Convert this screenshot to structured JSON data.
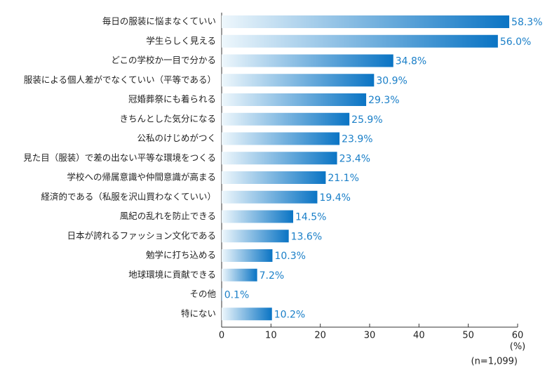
{
  "chart_data": {
    "type": "hbar",
    "categories": [
      "毎日の服装に悩まなくていい",
      "学生らしく見える",
      "どこの学校か一目で分かる",
      "服装による個人差がでなくていい（平等である）",
      "冠婚葬祭にも着られる",
      "きちんとした気分になる",
      "公私のけじめがつく",
      "見た目（服装）で差の出ない平等な環境をつくる",
      "学校への帰属意識や仲間意識が高まる",
      "経済的である（私服を沢山買わなくていい）",
      "風紀の乱れを防止できる",
      "日本が誇れるファッション文化である",
      "勉学に打ち込める",
      "地球環境に貢献できる",
      "その他",
      "特にない"
    ],
    "values": [
      58.3,
      56.0,
      34.8,
      30.9,
      29.3,
      25.9,
      23.9,
      23.4,
      21.1,
      19.4,
      14.5,
      13.6,
      10.3,
      7.2,
      0.1,
      10.2
    ],
    "value_labels": [
      "58.3%",
      "56.0%",
      "34.8%",
      "30.9%",
      "29.3%",
      "25.9%",
      "23.9%",
      "23.4%",
      "21.1%",
      "19.4%",
      "14.5%",
      "13.6%",
      "10.3%",
      "7.2%",
      "0.1%",
      "10.2%"
    ],
    "color": "#0a74c4",
    "xlim": [
      0,
      60
    ],
    "xticks": [
      0,
      10,
      20,
      30,
      40,
      50,
      60
    ],
    "x_unit": "(%)",
    "note": "(n=1,099)"
  }
}
